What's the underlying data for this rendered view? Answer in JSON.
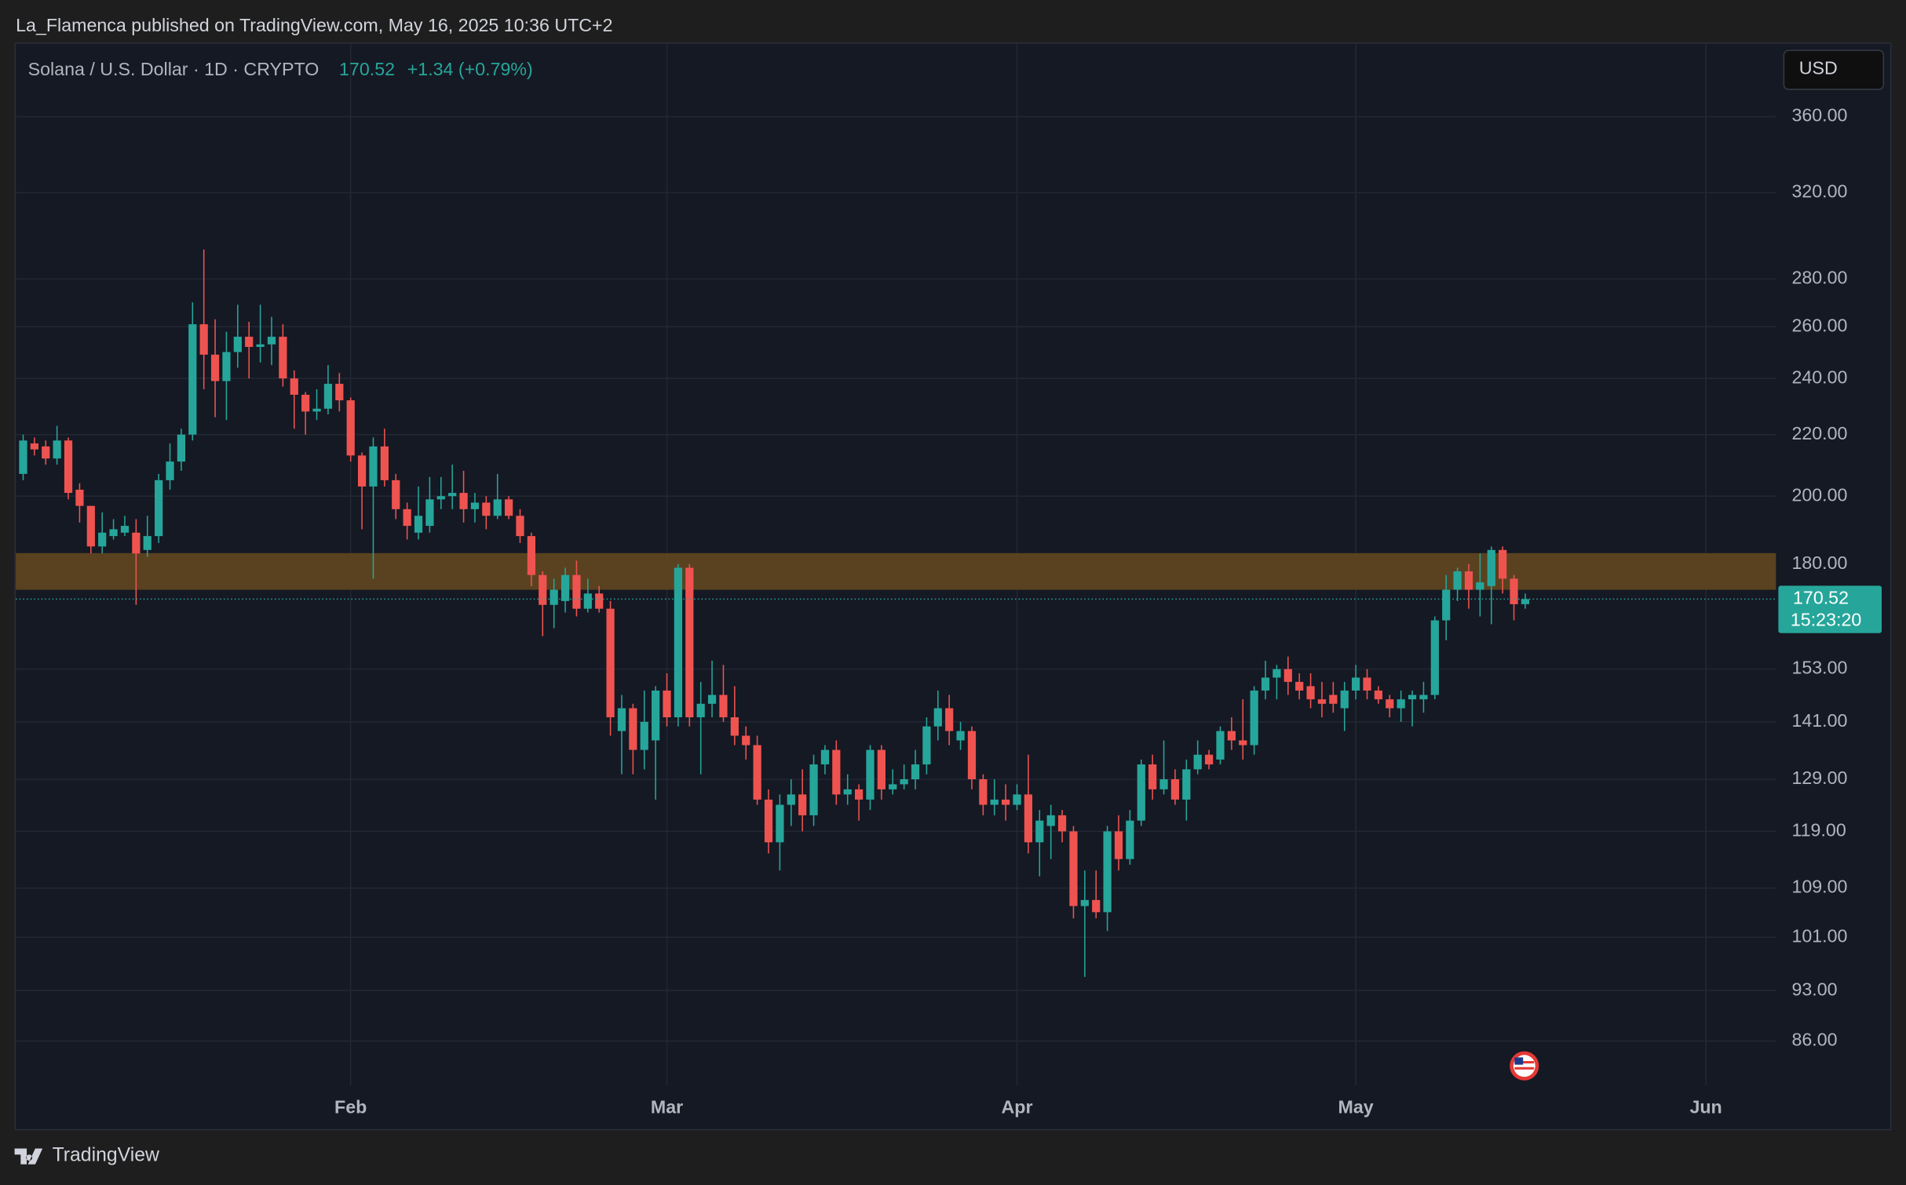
{
  "header": {
    "publisher": "La_Flamenca published on TradingView.com, May 16, 2025 10:36 UTC+2"
  },
  "footer": {
    "brand": "TradingView"
  },
  "chart_data": {
    "type": "candlestick",
    "title": "Solana / U.S. Dollar · 1D · CRYPTO",
    "change": "+1.34 (+0.79%)",
    "currency": "USD",
    "countdown": "15:23:20",
    "up_color": "#26a69a",
    "down_color": "#ef5350",
    "zone": [
      173,
      183.1
    ],
    "zone_color": "#5e4521",
    "log_scale": true,
    "grid": true,
    "xlim": [
      -0.65,
      155.2
    ],
    "xticks": [
      {
        "value": 29,
        "label": "Feb"
      },
      {
        "value": 57,
        "label": "Mar"
      },
      {
        "value": 88,
        "label": "Apr"
      },
      {
        "value": 118,
        "label": "May"
      },
      {
        "value": 149,
        "label": "Jun"
      }
    ],
    "ylim": [
      80.3,
      403
    ],
    "yticks": [
      {
        "value": 86,
        "label": "86.00"
      },
      {
        "value": 93,
        "label": "93.00"
      },
      {
        "value": 101,
        "label": "101.00"
      },
      {
        "value": 109,
        "label": "109.00"
      },
      {
        "value": 119,
        "label": "119.00"
      },
      {
        "value": 129,
        "label": "129.00"
      },
      {
        "value": 141,
        "label": "141.00"
      },
      {
        "value": 153,
        "label": "153.00"
      },
      {
        "value": 180,
        "label": "180.00"
      },
      {
        "value": 200,
        "label": "200.00"
      },
      {
        "value": 220,
        "label": "220.00"
      },
      {
        "value": 240,
        "label": "240.00"
      },
      {
        "value": 260,
        "label": "260.00"
      },
      {
        "value": 280,
        "label": "280.00"
      },
      {
        "value": 320,
        "label": "320.00"
      },
      {
        "value": 360,
        "label": "360.00"
      }
    ],
    "open": [
      207,
      217,
      216,
      212,
      218,
      202,
      197,
      185,
      188,
      189,
      189,
      184,
      188,
      205,
      211,
      220,
      261,
      249,
      239,
      250,
      256,
      252,
      253,
      256,
      240,
      234,
      228,
      229,
      238,
      232,
      213,
      203,
      216,
      205,
      196,
      189,
      191,
      199,
      200,
      201,
      196,
      198,
      194,
      199,
      194,
      188,
      177,
      169,
      170,
      177,
      168,
      172,
      168,
      139,
      144,
      135,
      137,
      148,
      142,
      179,
      142,
      145,
      147,
      142,
      138,
      136,
      125,
      117,
      124,
      126,
      122,
      132,
      135,
      126,
      127,
      125,
      135,
      127,
      128,
      129,
      132,
      140,
      144,
      137,
      139,
      129,
      124,
      125,
      124,
      126,
      117,
      120,
      122,
      119,
      106,
      107,
      105,
      119,
      114,
      121,
      132,
      127,
      129,
      125,
      131,
      134,
      133,
      139,
      137,
      136,
      148,
      151,
      153,
      150,
      149,
      146,
      147,
      144,
      148,
      151,
      148,
      146,
      144,
      146,
      146,
      147,
      165,
      173,
      178,
      173,
      174,
      184,
      176,
      169.18
    ],
    "high": [
      220,
      219,
      218,
      223,
      219,
      204,
      197,
      195,
      193,
      194,
      193,
      194,
      207,
      217,
      222,
      270,
      293,
      263,
      258,
      269,
      262,
      269,
      264,
      261,
      243,
      235,
      236,
      245,
      242,
      233,
      214,
      219,
      222,
      207,
      198,
      203,
      206,
      206,
      210,
      208,
      201,
      200,
      207,
      200,
      196,
      189,
      178,
      176,
      179,
      181,
      176,
      174,
      170,
      147,
      145,
      148,
      149,
      152,
      180,
      180,
      150,
      155,
      154,
      149,
      140,
      138,
      127,
      126,
      129,
      131,
      134,
      136,
      137,
      130,
      128,
      136,
      136,
      131,
      132,
      135,
      142,
      148,
      147,
      141,
      140,
      130,
      129,
      128,
      128,
      134,
      123,
      124,
      123,
      120,
      112,
      112,
      120,
      122,
      123,
      133,
      134,
      137,
      131,
      133,
      137,
      135,
      140,
      142,
      146,
      149,
      155,
      154,
      156,
      152,
      152,
      150,
      150,
      150,
      154,
      153,
      149,
      147,
      148,
      148,
      150,
      166,
      177,
      179,
      180,
      183,
      185,
      185,
      177,
      172
    ],
    "low": [
      205,
      213,
      210,
      210,
      199,
      192,
      183,
      183,
      187,
      188,
      169,
      182,
      186,
      202,
      208,
      218,
      236,
      226,
      225,
      244,
      240,
      246,
      245,
      237,
      222,
      220,
      225,
      227,
      228,
      211,
      190,
      176,
      203,
      193,
      187,
      187,
      189,
      196,
      196,
      192,
      192,
      190,
      193,
      193,
      186,
      174,
      161,
      163,
      167,
      166,
      167,
      167,
      138,
      130,
      130,
      131,
      125,
      140,
      140,
      140,
      130,
      142,
      141,
      136,
      133,
      124,
      115,
      112,
      120,
      119,
      120,
      130,
      124,
      124,
      121,
      123,
      125,
      126,
      127,
      127,
      130,
      137,
      136,
      135,
      127,
      122,
      122,
      121,
      123,
      115,
      111,
      114,
      117,
      104,
      95,
      104,
      102,
      112,
      113,
      120,
      125,
      126,
      124,
      121,
      130,
      131,
      132,
      135,
      133,
      134,
      146,
      146,
      147,
      146,
      144,
      142,
      143,
      139,
      146,
      146,
      145,
      142,
      141,
      140,
      143,
      146,
      160,
      170,
      168,
      166,
      164,
      172,
      165,
      168
    ],
    "close": [
      218,
      215,
      212,
      218,
      201,
      197,
      185,
      189,
      190,
      191,
      183,
      188,
      205,
      211,
      220,
      261,
      249,
      239,
      250,
      256,
      252,
      253,
      256,
      240,
      234,
      228,
      229,
      238,
      232,
      213,
      203,
      216,
      205,
      196,
      191,
      194,
      199,
      200,
      201,
      196,
      198,
      194,
      199,
      194,
      188,
      177,
      169,
      173,
      177,
      168,
      172,
      168,
      142,
      144,
      135,
      141,
      148,
      142,
      179,
      142,
      145,
      147,
      142,
      138,
      136,
      125,
      117,
      124,
      126,
      122,
      132,
      135,
      126,
      127,
      125,
      135,
      127,
      128,
      129,
      132,
      140,
      144,
      139,
      139,
      129,
      124,
      125,
      124,
      126,
      117,
      121,
      122,
      119,
      106,
      107,
      105,
      119,
      114,
      121,
      132,
      127,
      129,
      125,
      131,
      134,
      132,
      139,
      137,
      136,
      148,
      151,
      153,
      150,
      148,
      146,
      145,
      145,
      148,
      151,
      148,
      146,
      144,
      146,
      147,
      147,
      165,
      173,
      178,
      173,
      175,
      184,
      176,
      169.18,
      170.52
    ]
  }
}
